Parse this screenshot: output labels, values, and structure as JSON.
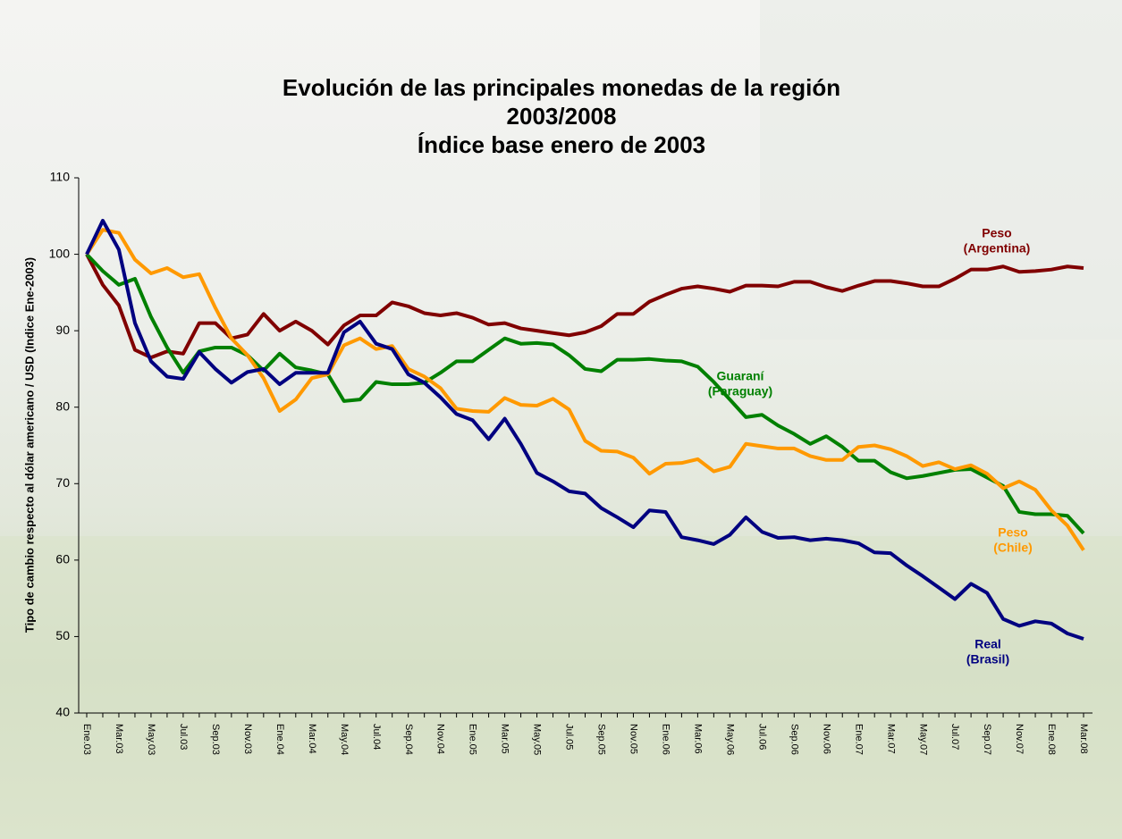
{
  "chart_data": {
    "type": "line",
    "title": [
      "Evolución de las principales monedas de la región",
      "2003/2008",
      "Índice base enero de 2003"
    ],
    "y_label": "Tipo de cambio respecto al dólar americano / USD (Indice Ene-2003)",
    "categories": [
      "Ene.03",
      null,
      "Mar.03",
      null,
      "May.03",
      null,
      "Jul.03",
      null,
      "Sep.03",
      null,
      "Nov.03",
      null,
      "Ene.04",
      null,
      "Mar.04",
      null,
      "May.04",
      null,
      "Jul.04",
      null,
      "Sep.04",
      null,
      "Nov.04",
      null,
      "Ene.05",
      null,
      "Mar.05",
      null,
      "May.05",
      null,
      "Jul.05",
      null,
      "Sep.05",
      null,
      "Nov.05",
      null,
      "Ene.06",
      null,
      "Mar.06",
      null,
      "May.06",
      null,
      "Jul.06",
      null,
      "Sep.06",
      null,
      "Nov.06",
      null,
      "Ene.07",
      null,
      "Mar.07",
      null,
      "May.07",
      null,
      "Jul.07",
      null,
      "Sep.07",
      null,
      "Nov.07",
      null,
      "Ene.08",
      null,
      "Mar.08"
    ],
    "ylim": [
      40,
      110
    ],
    "yticks": [
      40,
      50,
      60,
      70,
      80,
      90,
      100,
      110
    ],
    "series": [
      {
        "name": [
          "Peso",
          "(Argentina)"
        ],
        "color": "#800000",
        "values": [
          100,
          96,
          93.3,
          87.5,
          86.5,
          87.3,
          87,
          91,
          91,
          89,
          89.5,
          92.2,
          90,
          91.2,
          90,
          88.2,
          90.7,
          92,
          92,
          93.7,
          93.2,
          92.3,
          92,
          92.3,
          91.7,
          90.8,
          91,
          90.3,
          90,
          89.7,
          89.4,
          89.8,
          90.6,
          92.2,
          92.2,
          93.8,
          94.7,
          95.5,
          95.8,
          95.5,
          95.1,
          95.9,
          95.9,
          95.8,
          96.4,
          96.4,
          95.7,
          95.2,
          95.9,
          96.5,
          96.5,
          96.2,
          95.8,
          95.8,
          96.8,
          98,
          98,
          98.4,
          97.7,
          97.8,
          98,
          98.4,
          98.2
        ]
      },
      {
        "name": [
          "Guaraní",
          "(Paraguay)"
        ],
        "color": "#008000",
        "values": [
          100,
          97.8,
          96,
          96.8,
          91.8,
          87.8,
          84.5,
          87.3,
          87.8,
          87.8,
          86.8,
          84.8,
          87,
          85.2,
          84.8,
          84.3,
          80.8,
          81,
          83.3,
          83,
          83,
          83.2,
          84.5,
          86,
          86,
          87.5,
          89,
          88.3,
          88.4,
          88.2,
          86.8,
          85,
          84.7,
          86.2,
          86.2,
          86.3,
          86.1,
          86,
          85.3,
          83.3,
          81,
          78.7,
          79,
          77.6,
          76.5,
          75.2,
          76.2,
          74.8,
          73,
          73,
          71.5,
          70.7,
          71,
          71.4,
          71.8,
          71.9,
          70.8,
          69.7,
          66.3,
          66,
          66,
          65.8,
          63.5
        ]
      },
      {
        "name": [
          "Peso",
          "(Chile)"
        ],
        "color": "#FF9900",
        "values": [
          100,
          103.2,
          102.8,
          99.3,
          97.5,
          98.2,
          97,
          97.4,
          93,
          89,
          86.8,
          83.8,
          79.5,
          81,
          83.8,
          84.3,
          88.1,
          89,
          87.6,
          88,
          85,
          84,
          82.5,
          79.8,
          79.5,
          79.4,
          81.2,
          80.3,
          80.2,
          81.1,
          79.7,
          75.6,
          74.3,
          74.2,
          73.4,
          71.3,
          72.6,
          72.7,
          73.2,
          71.6,
          72.2,
          75.2,
          74.9,
          74.6,
          74.6,
          73.6,
          73.1,
          73.1,
          74.8,
          75,
          74.5,
          73.6,
          72.3,
          72.8,
          71.9,
          72.4,
          71.3,
          69.4,
          70.3,
          69.2,
          66.5,
          64.5,
          61.3
        ]
      },
      {
        "name": [
          "Real",
          "(Brasil)"
        ],
        "color": "#000080",
        "values": [
          100,
          104.4,
          100.6,
          91,
          86,
          84,
          83.7,
          87.2,
          85,
          83.2,
          84.6,
          85,
          83,
          84.5,
          84.5,
          84.5,
          89.8,
          91.2,
          88.3,
          87.6,
          84.3,
          83.2,
          81.3,
          79.1,
          78.3,
          75.8,
          78.5,
          75.2,
          71.4,
          70.3,
          69,
          68.7,
          66.8,
          65.6,
          64.3,
          66.5,
          66.3,
          63,
          62.6,
          62.1,
          63.3,
          65.6,
          63.7,
          62.9,
          63,
          62.6,
          62.8,
          62.6,
          62.2,
          61,
          60.9,
          59.3,
          57.9,
          56.4,
          54.9,
          56.9,
          55.7,
          52.3,
          51.4,
          52,
          51.7,
          50.4,
          49.7
        ]
      }
    ]
  }
}
